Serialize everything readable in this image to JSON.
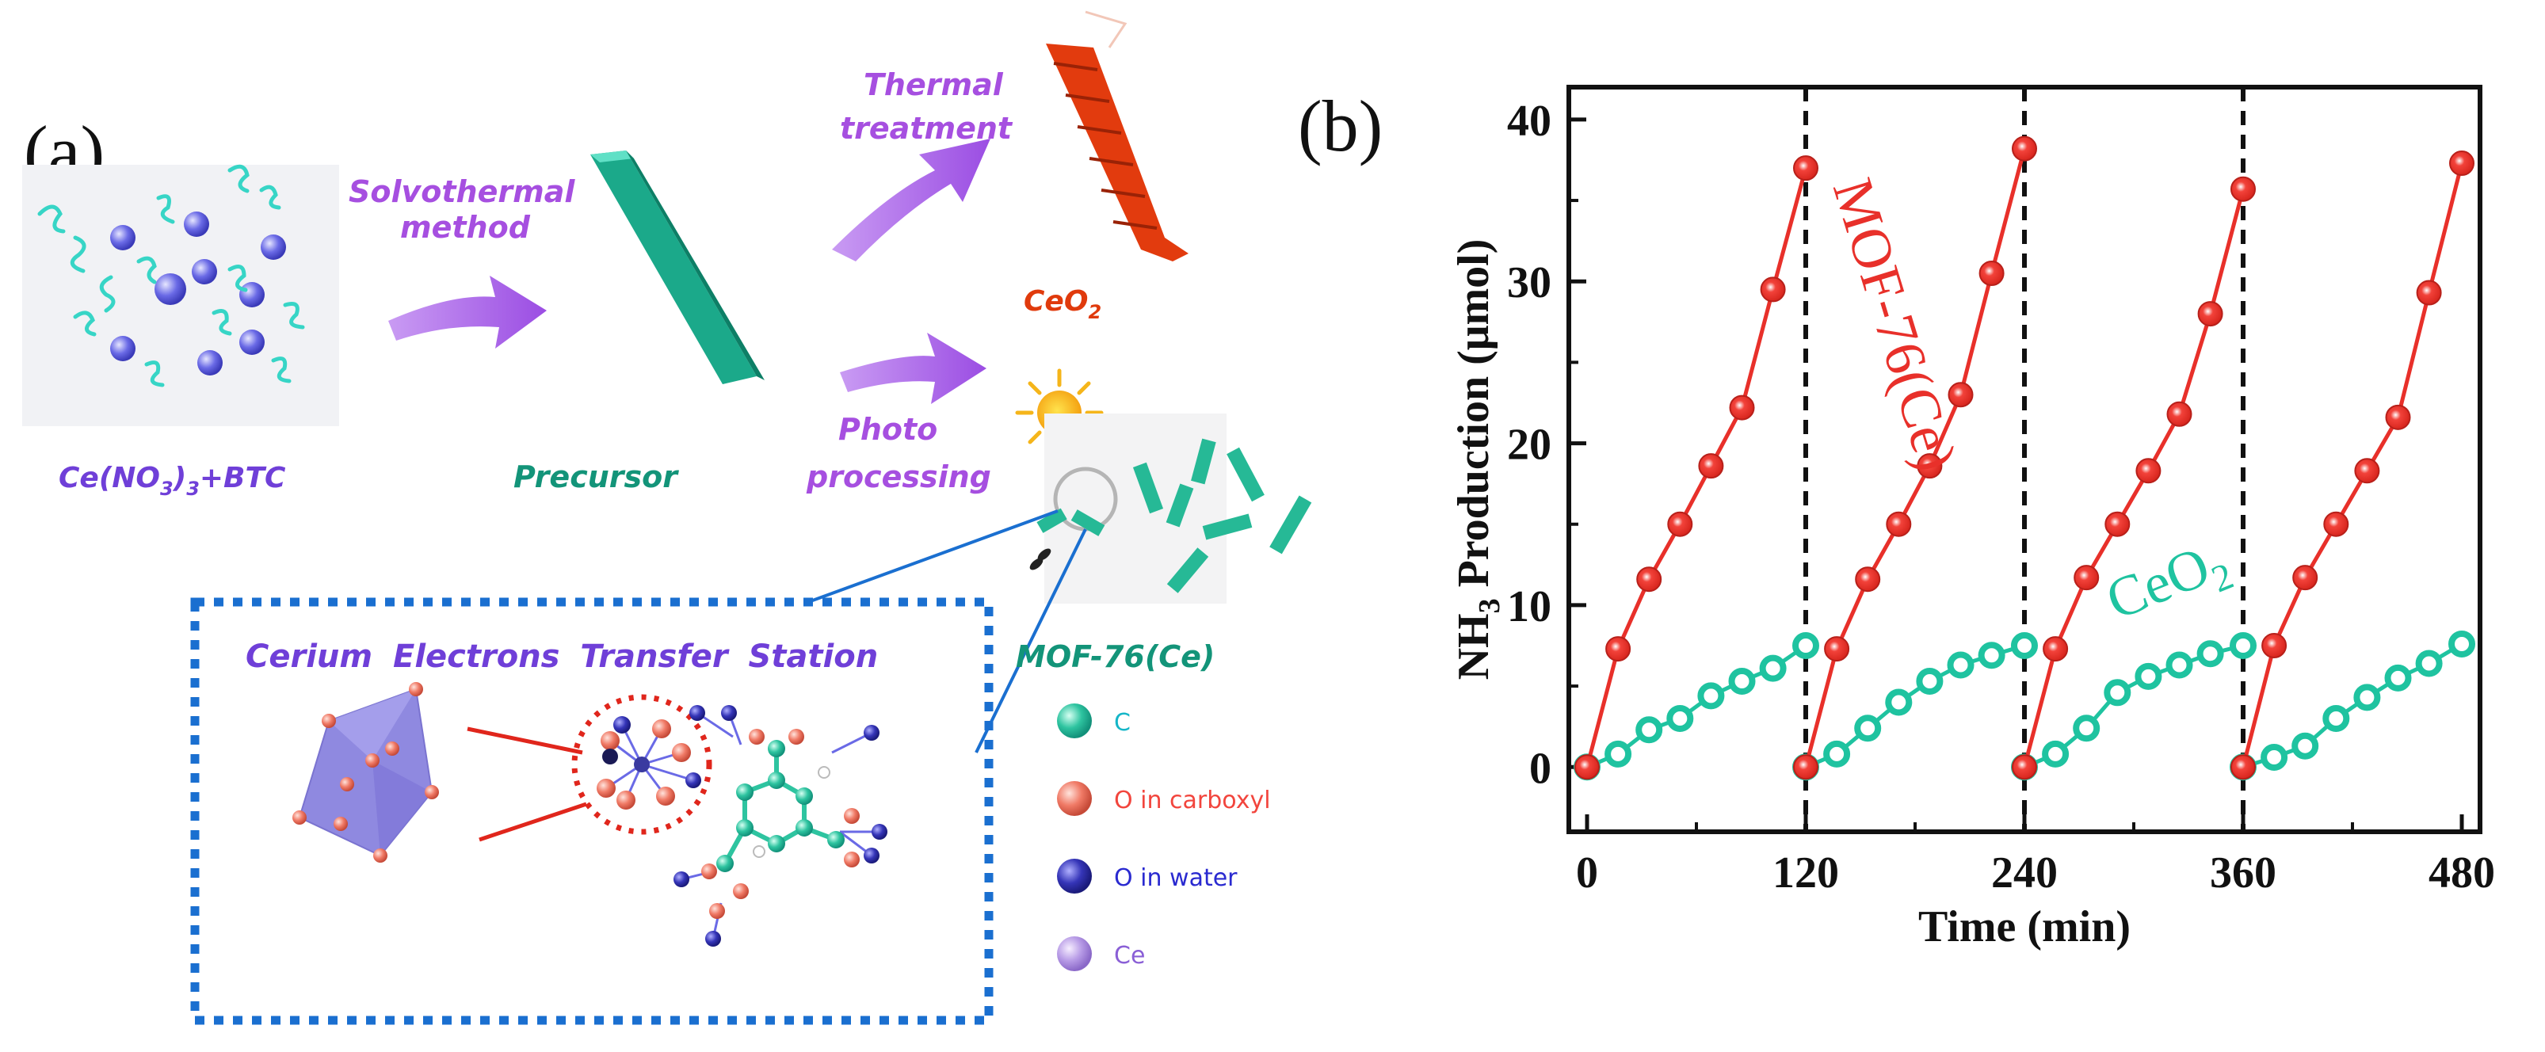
{
  "panel_a": {
    "panel_label": "(a)",
    "reactants_label": "Ce(NO",
    "reactants_sub": "3",
    "reactants_tail": ")",
    "reactants_sub2": "3",
    "reactants_plus": "+BTC",
    "solvothermal_line1": "Solvothermal",
    "solvothermal_line2": "method",
    "precursor_label": "Precursor",
    "thermal_line1": "Thermal",
    "thermal_line2": "treatment",
    "ceo2_label": "CeO",
    "ceo2_sub": "2",
    "photo_line1": "Photo",
    "photo_line2": "processing",
    "station_title": "Cerium Electrons Transfer Station",
    "mof_label": "MOF-76(Ce)",
    "legend": [
      {
        "label": "C",
        "color": "#2ec4a0",
        "text_color": "#15b6c8"
      },
      {
        "label": "O in carboxyl",
        "color": "#f07a66",
        "text_color": "#f2453d"
      },
      {
        "label": "O in water",
        "color": "#3535b8",
        "text_color": "#2a2ad0"
      },
      {
        "label": "Ce",
        "color": "#b79be6",
        "text_color": "#8a5fd6"
      }
    ],
    "colors": {
      "purple": "#a64fe0",
      "teal": "#139479",
      "orange": "#e03a0c",
      "blue_dots": "#1a6fd0",
      "violet_text": "#6f3fd8"
    }
  },
  "chart_data": {
    "panel_label": "(b)",
    "type": "line",
    "title": "",
    "xlabel": "Time (min)",
    "ylabel_main": "NH",
    "ylabel_sub": "3",
    "ylabel_tail": " Production (μmol)",
    "xlim": [
      -10,
      490
    ],
    "ylim": [
      -4,
      42
    ],
    "xticks": [
      0,
      120,
      240,
      360,
      480
    ],
    "yticks": [
      0,
      10,
      20,
      30,
      40
    ],
    "cycle_separators": [
      120,
      240,
      360
    ],
    "series": [
      {
        "name": "MOF-76(Ce)",
        "color": "#e8302a",
        "cycles": [
          {
            "x": [
              0,
              17,
              34,
              51,
              68,
              85,
              102,
              120
            ],
            "y": [
              0,
              7.3,
              11.6,
              15.0,
              18.6,
              22.2,
              29.5,
              37.0
            ]
          },
          {
            "x": [
              120,
              137,
              154,
              171,
              188,
              205,
              222,
              240
            ],
            "y": [
              0,
              7.3,
              11.6,
              15.0,
              18.6,
              23.0,
              30.5,
              38.2
            ]
          },
          {
            "x": [
              240,
              257,
              274,
              291,
              308,
              325,
              342,
              360
            ],
            "y": [
              0,
              7.3,
              11.7,
              15.0,
              18.3,
              21.8,
              28.0,
              35.7
            ]
          },
          {
            "x": [
              360,
              377,
              394,
              411,
              428,
              445,
              462,
              480
            ],
            "y": [
              0,
              7.5,
              11.7,
              15.0,
              18.3,
              21.6,
              29.3,
              37.3
            ]
          }
        ]
      },
      {
        "name": "CeO2",
        "label_main": "CeO",
        "label_sub": "2",
        "color": "#1fc3a0",
        "cycles": [
          {
            "x": [
              0,
              17,
              34,
              51,
              68,
              85,
              102,
              120
            ],
            "y": [
              0,
              0.8,
              2.3,
              3.0,
              4.4,
              5.3,
              6.1,
              7.5
            ]
          },
          {
            "x": [
              120,
              137,
              154,
              171,
              188,
              205,
              222,
              240
            ],
            "y": [
              0,
              0.8,
              2.4,
              4.0,
              5.3,
              6.3,
              6.9,
              7.5
            ]
          },
          {
            "x": [
              240,
              257,
              274,
              291,
              308,
              325,
              342,
              360
            ],
            "y": [
              0,
              0.8,
              2.4,
              4.6,
              5.6,
              6.3,
              7.0,
              7.5
            ]
          },
          {
            "x": [
              360,
              377,
              394,
              411,
              428,
              445,
              462,
              480
            ],
            "y": [
              0,
              0.6,
              1.3,
              3.0,
              4.3,
              5.5,
              6.4,
              7.6
            ]
          }
        ]
      }
    ]
  }
}
